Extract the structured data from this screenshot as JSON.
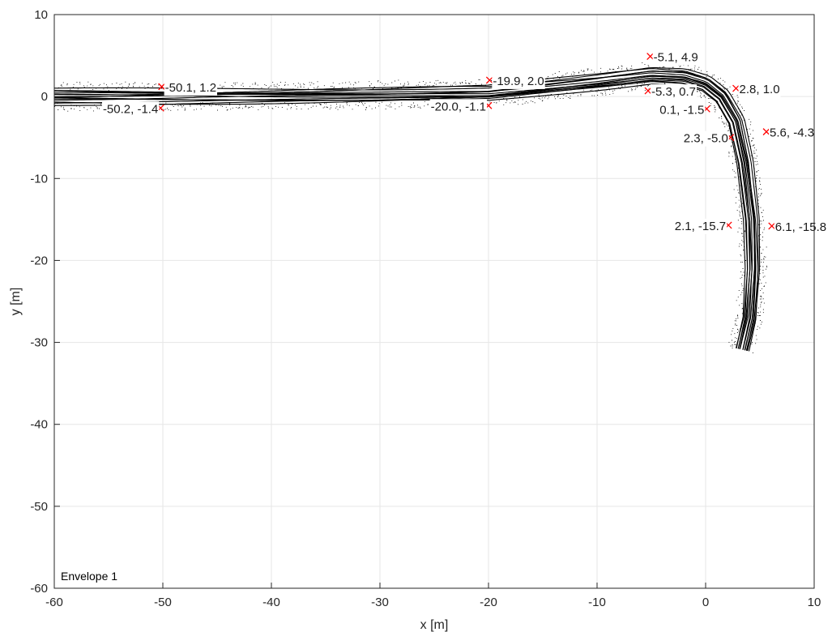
{
  "chart_data": {
    "type": "line",
    "title": "",
    "xlabel": "x [m]",
    "ylabel": "y [m]",
    "xlim": [
      -60,
      10
    ],
    "ylim": [
      -60,
      10
    ],
    "xticks": [
      -60,
      -50,
      -40,
      -30,
      -20,
      -10,
      0,
      10
    ],
    "yticks": [
      -60,
      -50,
      -40,
      -30,
      -20,
      -10,
      0,
      10
    ],
    "grid": true,
    "legend": {
      "position": "bottom-left",
      "entries": [
        "Envelope 1"
      ]
    },
    "series": [
      {
        "name": "Envelope 1",
        "style": "trajectories",
        "x": [
          -60,
          -50,
          -40,
          -30,
          -20,
          -10,
          -5,
          -2,
          0,
          1.5,
          2.8,
          3.6,
          4.2,
          4.3,
          4.0,
          3.3
        ],
        "y": [
          0,
          0,
          0.05,
          0.15,
          0.4,
          1.8,
          2.6,
          2.4,
          1.6,
          0.0,
          -3.0,
          -8.0,
          -15.0,
          -21.0,
          -27.0,
          -31.0
        ]
      }
    ],
    "annotations": [
      {
        "x": -50.1,
        "y": 1.2,
        "label": "-50.1, 1.2"
      },
      {
        "x": -50.2,
        "y": -1.4,
        "label": "-50.2, -1.4"
      },
      {
        "x": -19.9,
        "y": 2.0,
        "label": "-19.9, 2.0"
      },
      {
        "x": -20.0,
        "y": -1.1,
        "label": "-20.0, -1.1"
      },
      {
        "x": -5.1,
        "y": 4.9,
        "label": "-5.1, 4.9"
      },
      {
        "x": -5.3,
        "y": 0.7,
        "label": "-5.3, 0.7"
      },
      {
        "x": 2.8,
        "y": 1.0,
        "label": "2.8, 1.0"
      },
      {
        "x": 0.1,
        "y": -1.5,
        "label": "0.1, -1.5"
      },
      {
        "x": 5.6,
        "y": -4.3,
        "label": "5.6, -4.3"
      },
      {
        "x": 2.3,
        "y": -5.0,
        "label": "2.3, -5.0"
      },
      {
        "x": 6.1,
        "y": -15.8,
        "label": "6.1, -15.8"
      },
      {
        "x": 2.1,
        "y": -15.7,
        "label": "2.1, -15.7"
      }
    ],
    "colors": {
      "trajectory": "#000000",
      "marker": "#ff0000",
      "grid": "#e6e6e6",
      "axis": "#262626"
    }
  }
}
